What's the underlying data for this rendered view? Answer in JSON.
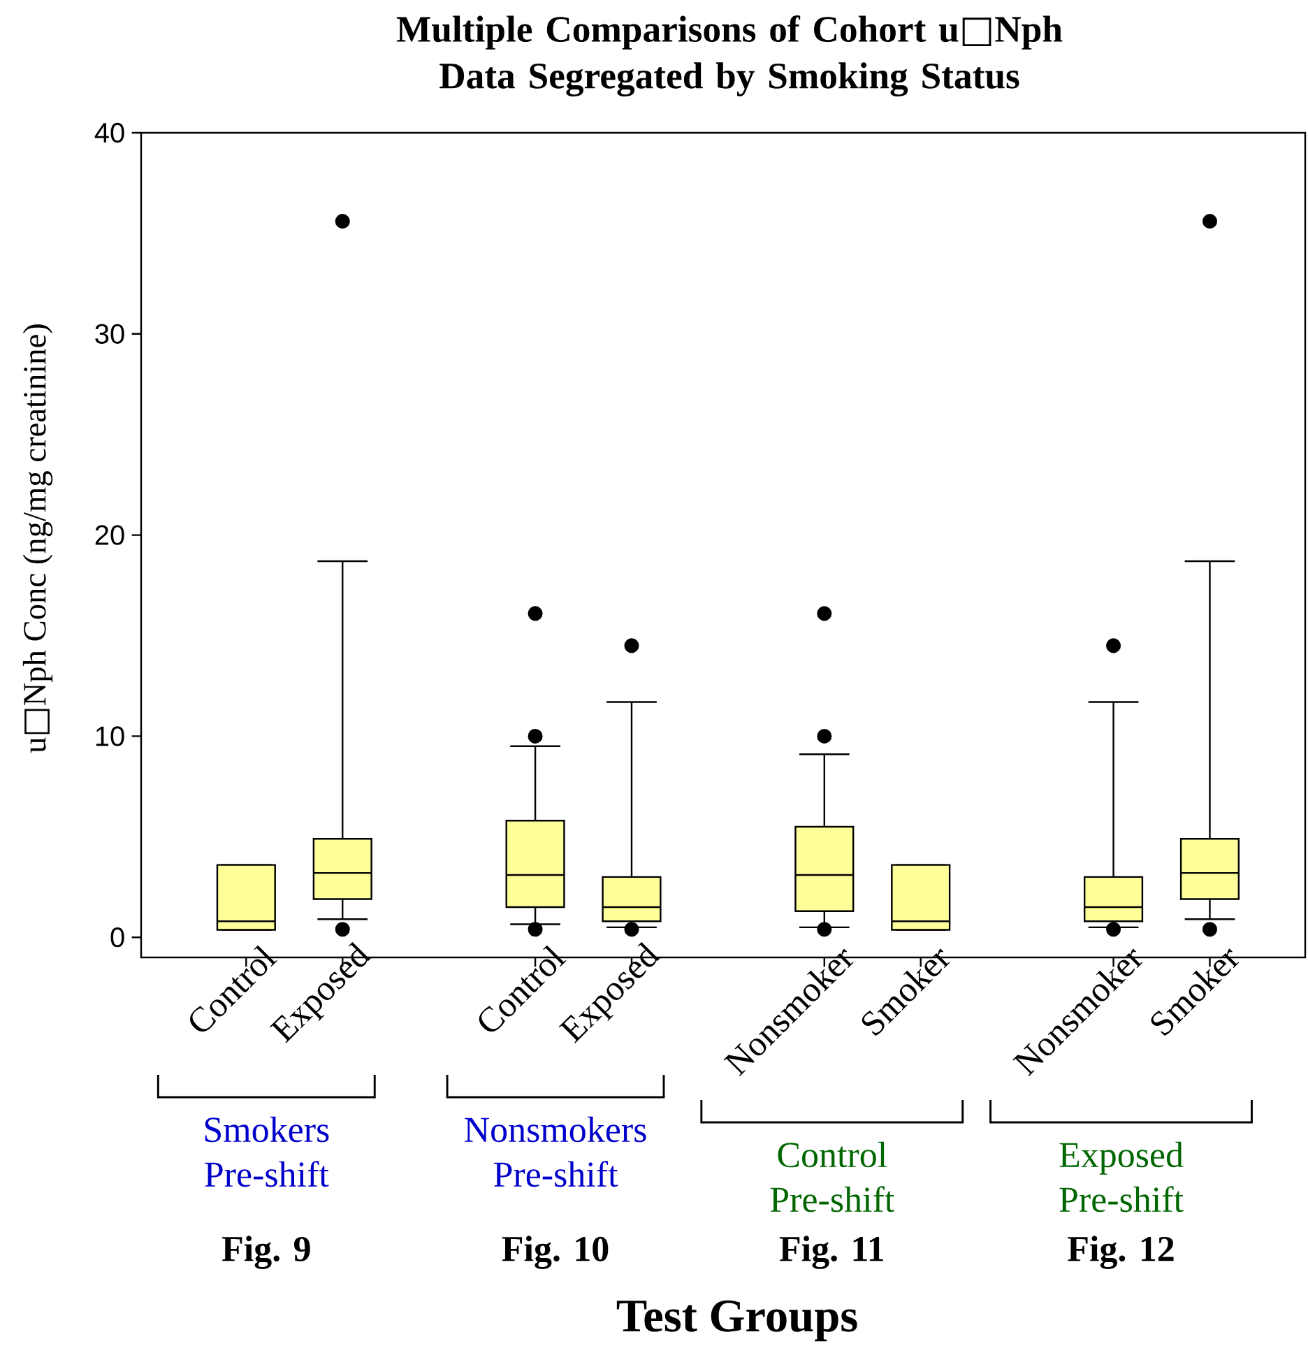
{
  "chart_data": {
    "type": "box",
    "title": "Multiple Comparisons of Cohort u□Nph Data Segregated by Smoking Status",
    "xlabel": "Test Groups",
    "ylabel": "u□Nph Conc (ng/mg creatinine)",
    "categories": [
      "Control",
      "Exposed",
      "Control",
      "Exposed",
      "Nonsmoker",
      "Smoker",
      "Nonsmoker",
      "Smoker"
    ],
    "color": "#ffff99",
    "marker": "circle",
    "boxes": [
      {
        "low": 0.37,
        "q1": 0.37,
        "median": 0.8,
        "q3": 3.6,
        "high": 3.6
      },
      {
        "low": 0.9,
        "q1": 1.9,
        "median": 3.2,
        "q3": 4.9,
        "high": 18.7,
        "outliers": [
          35.6,
          0.4
        ]
      },
      {
        "low": 0.65,
        "q1": 1.5,
        "median": 3.1,
        "q3": 5.8,
        "high": 9.5,
        "outliers": [
          16.1,
          10.0,
          0.4
        ]
      },
      {
        "low": 0.5,
        "q1": 0.8,
        "median": 1.5,
        "q3": 3.0,
        "high": 11.7,
        "outliers": [
          14.5,
          0.4
        ]
      },
      {
        "low": 0.5,
        "q1": 1.3,
        "median": 3.1,
        "q3": 5.5,
        "high": 9.1,
        "outliers": [
          16.1,
          10.0,
          0.4
        ]
      },
      {
        "low": 0.37,
        "q1": 0.37,
        "median": 0.8,
        "q3": 3.6,
        "high": 3.6
      },
      {
        "low": 0.5,
        "q1": 0.8,
        "median": 1.5,
        "q3": 3.0,
        "high": 11.7,
        "outliers": [
          14.5,
          0.4
        ]
      },
      {
        "low": 0.9,
        "q1": 1.9,
        "median": 3.2,
        "q3": 4.9,
        "high": 18.7,
        "outliers": [
          35.6,
          0.4
        ]
      }
    ],
    "ylim": [
      -1,
      40
    ],
    "yticks": [
      0,
      10,
      20,
      30,
      40
    ],
    "annotations": [
      "Smokers Pre-shift",
      "Nonsmokers Pre-shift",
      "Control Pre-shift",
      "Exposed Pre-shift",
      "Fig. 9",
      "Fig. 10",
      "Fig. 11",
      "Fig. 12"
    ]
  }
}
